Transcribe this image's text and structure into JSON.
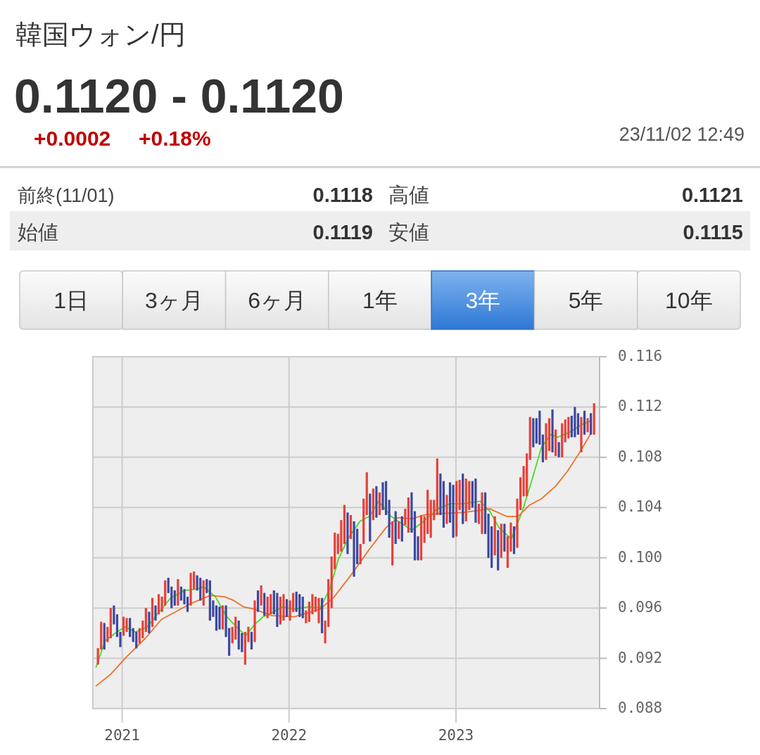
{
  "chart_data": {
    "type": "candlestick",
    "title": "韓国ウォン/円",
    "subtitle": "0.1120 - 0.1120",
    "annotations": [
      "+0.0002",
      "+0.18%",
      "23/11/02 12:49",
      "前終(11/01)",
      "0.1118",
      "高値",
      "0.1121",
      "始値",
      "0.1119",
      "安値",
      "0.1115",
      "1日",
      "3ヶ月",
      "6ヶ月",
      "1年",
      "3年",
      "5年",
      "10年"
    ],
    "x": [
      "2020-11-09",
      "2020-11-16",
      "2020-11-23",
      "2020-11-30",
      "2020-12-07",
      "2020-12-14",
      "2020-12-21",
      "2020-12-28",
      "2021-01-04",
      "2021-01-11",
      "2021-01-18",
      "2021-01-25",
      "2021-02-01",
      "2021-02-08",
      "2021-02-15",
      "2021-02-22",
      "2021-03-01",
      "2021-03-08",
      "2021-03-15",
      "2021-03-22",
      "2021-03-29",
      "2021-04-05",
      "2021-04-12",
      "2021-04-19",
      "2021-04-26",
      "2021-05-03",
      "2021-05-10",
      "2021-05-17",
      "2021-05-24",
      "2021-05-31",
      "2021-06-07",
      "2021-06-14",
      "2021-06-21",
      "2021-06-28",
      "2021-07-05",
      "2021-07-12",
      "2021-07-19",
      "2021-07-26",
      "2021-08-02",
      "2021-08-09",
      "2021-08-16",
      "2021-08-23",
      "2021-08-30",
      "2021-09-06",
      "2021-09-13",
      "2021-09-20",
      "2021-09-27",
      "2021-10-04",
      "2021-10-11",
      "2021-10-18",
      "2021-10-25",
      "2021-11-01",
      "2021-11-08",
      "2021-11-15",
      "2021-11-22",
      "2021-11-29",
      "2021-12-06",
      "2021-12-13",
      "2021-12-20",
      "2021-12-27",
      "2022-01-03",
      "2022-01-10",
      "2022-01-17",
      "2022-01-24",
      "2022-01-31",
      "2022-02-07",
      "2022-02-14",
      "2022-02-21",
      "2022-02-28",
      "2022-03-07",
      "2022-03-14",
      "2022-03-21",
      "2022-03-28",
      "2022-04-04",
      "2022-04-11",
      "2022-04-18",
      "2022-04-25",
      "2022-05-02",
      "2022-05-09",
      "2022-05-16",
      "2022-05-23",
      "2022-05-30",
      "2022-06-06",
      "2022-06-13",
      "2022-06-20",
      "2022-06-27",
      "2022-07-04",
      "2022-07-11",
      "2022-07-18",
      "2022-07-25",
      "2022-08-01",
      "2022-08-08",
      "2022-08-15",
      "2022-08-22",
      "2022-08-29",
      "2022-09-05",
      "2022-09-12",
      "2022-09-19",
      "2022-09-26",
      "2022-10-03",
      "2022-10-10",
      "2022-10-17",
      "2022-10-24",
      "2022-10-31",
      "2022-11-07",
      "2022-11-14",
      "2022-11-21",
      "2022-11-28",
      "2022-12-05",
      "2022-12-12",
      "2022-12-19",
      "2022-12-26",
      "2023-01-02",
      "2023-01-09",
      "2023-01-16",
      "2023-01-23",
      "2023-01-30",
      "2023-02-06",
      "2023-02-13",
      "2023-02-20",
      "2023-02-27",
      "2023-03-06",
      "2023-03-13",
      "2023-03-20",
      "2023-03-27",
      "2023-04-03",
      "2023-04-10",
      "2023-04-17",
      "2023-04-24",
      "2023-05-01",
      "2023-05-08",
      "2023-05-15",
      "2023-05-22",
      "2023-05-29",
      "2023-06-05",
      "2023-06-12",
      "2023-06-19",
      "2023-06-26",
      "2023-07-03",
      "2023-07-10",
      "2023-07-17",
      "2023-07-24",
      "2023-07-31",
      "2023-08-07",
      "2023-08-14",
      "2023-08-21",
      "2023-08-28",
      "2023-09-04",
      "2023-09-11",
      "2023-09-18",
      "2023-09-25",
      "2023-10-02",
      "2023-10-09",
      "2023-10-16",
      "2023-10-23",
      "2023-10-30"
    ],
    "ohlc": [
      [
        0.0915,
        0.0928,
        0.0915,
        0.0928
      ],
      [
        0.0927,
        0.0949,
        0.0927,
        0.0949
      ],
      [
        0.0948,
        0.0948,
        0.0927,
        0.0927
      ],
      [
        0.0933,
        0.0945,
        0.0933,
        0.0945
      ],
      [
        0.0936,
        0.096,
        0.0936,
        0.096
      ],
      [
        0.0962,
        0.0962,
        0.0947,
        0.0947
      ],
      [
        0.0955,
        0.0955,
        0.0937,
        0.0937
      ],
      [
        0.0941,
        0.0941,
        0.0929,
        0.0929
      ],
      [
        0.0938,
        0.0953,
        0.0938,
        0.0953
      ],
      [
        0.0941,
        0.0952,
        0.0941,
        0.0952
      ],
      [
        0.0952,
        0.0952,
        0.0937,
        0.0937
      ],
      [
        0.0944,
        0.0944,
        0.0933,
        0.0933
      ],
      [
        0.0941,
        0.0941,
        0.0928,
        0.0928
      ],
      [
        0.0932,
        0.0944,
        0.0932,
        0.0944
      ],
      [
        0.0936,
        0.095,
        0.0936,
        0.095
      ],
      [
        0.0941,
        0.096,
        0.0941,
        0.096
      ],
      [
        0.0957,
        0.0957,
        0.094,
        0.094
      ],
      [
        0.0945,
        0.0968,
        0.0945,
        0.0968
      ],
      [
        0.0962,
        0.0962,
        0.095,
        0.095
      ],
      [
        0.0955,
        0.0971,
        0.0955,
        0.0971
      ],
      [
        0.0957,
        0.0969,
        0.0957,
        0.0969
      ],
      [
        0.0962,
        0.0982,
        0.0962,
        0.0982
      ],
      [
        0.0984,
        0.0984,
        0.0972,
        0.0972
      ],
      [
        0.0977,
        0.0977,
        0.096,
        0.096
      ],
      [
        0.0974,
        0.0974,
        0.0962,
        0.0962
      ],
      [
        0.0962,
        0.0983,
        0.0962,
        0.0983
      ],
      [
        0.0977,
        0.0977,
        0.0966,
        0.0966
      ],
      [
        0.0975,
        0.0975,
        0.0963,
        0.0963
      ],
      [
        0.0969,
        0.0969,
        0.0957,
        0.0957
      ],
      [
        0.0962,
        0.0988,
        0.0962,
        0.0988
      ],
      [
        0.0975,
        0.0989,
        0.0975,
        0.0989
      ],
      [
        0.0986,
        0.0986,
        0.0974,
        0.0974
      ],
      [
        0.0984,
        0.0984,
        0.0966,
        0.0966
      ],
      [
        0.0962,
        0.0982,
        0.0962,
        0.0982
      ],
      [
        0.0983,
        0.0983,
        0.0972,
        0.0972
      ],
      [
        0.0982,
        0.0982,
        0.095,
        0.095
      ],
      [
        0.0966,
        0.0966,
        0.0953,
        0.0953
      ],
      [
        0.0962,
        0.0962,
        0.0942,
        0.0942
      ],
      [
        0.0961,
        0.0961,
        0.0943,
        0.0943
      ],
      [
        0.0943,
        0.0962,
        0.0943,
        0.0962
      ],
      [
        0.0962,
        0.0962,
        0.0937,
        0.0937
      ],
      [
        0.0944,
        0.0944,
        0.0922,
        0.0922
      ],
      [
        0.0932,
        0.0945,
        0.0932,
        0.0945
      ],
      [
        0.0935,
        0.0953,
        0.0935,
        0.0953
      ],
      [
        0.095,
        0.095,
        0.0927,
        0.0927
      ],
      [
        0.094,
        0.094,
        0.0925,
        0.0925
      ],
      [
        0.0915,
        0.0941,
        0.0915,
        0.0941
      ],
      [
        0.0933,
        0.0945,
        0.0933,
        0.0945
      ],
      [
        0.0941,
        0.0941,
        0.0927,
        0.0927
      ],
      [
        0.0933,
        0.0966,
        0.0933,
        0.0966
      ],
      [
        0.0974,
        0.0974,
        0.0957,
        0.0957
      ],
      [
        0.0962,
        0.0978,
        0.0962,
        0.0978
      ],
      [
        0.0972,
        0.0972,
        0.0954,
        0.0954
      ],
      [
        0.0952,
        0.0969,
        0.0952,
        0.0969
      ],
      [
        0.0955,
        0.0971,
        0.0955,
        0.0971
      ],
      [
        0.0974,
        0.0974,
        0.0955,
        0.0955
      ],
      [
        0.0972,
        0.0972,
        0.0945,
        0.0945
      ],
      [
        0.0947,
        0.0969,
        0.0947,
        0.0969
      ],
      [
        0.095,
        0.0971,
        0.095,
        0.0971
      ],
      [
        0.0967,
        0.0967,
        0.0953,
        0.0953
      ],
      [
        0.095,
        0.0966,
        0.095,
        0.0966
      ],
      [
        0.0957,
        0.0972,
        0.0957,
        0.0972
      ],
      [
        0.0973,
        0.0973,
        0.0957,
        0.0957
      ],
      [
        0.0971,
        0.0971,
        0.0953,
        0.0953
      ],
      [
        0.0969,
        0.0969,
        0.0952,
        0.0952
      ],
      [
        0.0948,
        0.0958,
        0.0948,
        0.0958
      ],
      [
        0.0949,
        0.0965,
        0.0949,
        0.0965
      ],
      [
        0.0955,
        0.0971,
        0.0955,
        0.0971
      ],
      [
        0.0957,
        0.0969,
        0.0957,
        0.0969
      ],
      [
        0.0948,
        0.0968,
        0.0948,
        0.0968
      ],
      [
        0.0968,
        0.0968,
        0.094,
        0.094
      ],
      [
        0.0932,
        0.095,
        0.0932,
        0.095
      ],
      [
        0.0945,
        0.0983,
        0.0945,
        0.0983
      ],
      [
        0.096,
        0.1001,
        0.096,
        0.1001
      ],
      [
        0.0991,
        0.102,
        0.0991,
        0.102
      ],
      [
        0.1003,
        0.1019,
        0.1003,
        0.1019
      ],
      [
        0.1005,
        0.103,
        0.1005,
        0.103
      ],
      [
        0.1011,
        0.1042,
        0.1011,
        0.1042
      ],
      [
        0.1036,
        0.1036,
        0.1003,
        0.1003
      ],
      [
        0.1015,
        0.1034,
        0.1015,
        0.1034
      ],
      [
        0.1029,
        0.1029,
        0.0985,
        0.0985
      ],
      [
        0.1023,
        0.1023,
        0.0995,
        0.0995
      ],
      [
        0.0995,
        0.1011,
        0.0995,
        0.1011
      ],
      [
        0.1011,
        0.1047,
        0.1011,
        0.1047
      ],
      [
        0.1034,
        0.1068,
        0.1034,
        0.1068
      ],
      [
        0.1051,
        0.1051,
        0.1013,
        0.1013
      ],
      [
        0.103,
        0.1055,
        0.103,
        0.1055
      ],
      [
        0.1057,
        0.1057,
        0.1032,
        0.1032
      ],
      [
        0.1034,
        0.1052,
        0.1034,
        0.1052
      ],
      [
        0.106,
        0.106,
        0.1038,
        0.1038
      ],
      [
        0.1061,
        0.1061,
        0.1034,
        0.1034
      ],
      [
        0.1046,
        0.1046,
        0.1016,
        0.1016
      ],
      [
        0.0994,
        0.1029,
        0.0994,
        0.1029
      ],
      [
        0.1037,
        0.1037,
        0.1011,
        0.1011
      ],
      [
        0.1015,
        0.1029,
        0.1015,
        0.1029
      ],
      [
        0.1033,
        0.1033,
        0.1013,
        0.1013
      ],
      [
        0.1026,
        0.1039,
        0.1026,
        0.1039
      ],
      [
        0.102,
        0.1048,
        0.102,
        0.1048
      ],
      [
        0.1052,
        0.1052,
        0.102,
        0.102
      ],
      [
        0.1037,
        0.1037,
        0.0998,
        0.0998
      ],
      [
        0.1017,
        0.1017,
        0.0998,
        0.0998
      ],
      [
        0.0998,
        0.1034,
        0.0998,
        0.1034
      ],
      [
        0.1012,
        0.1033,
        0.1012,
        0.1033
      ],
      [
        0.1019,
        0.1054,
        0.1019,
        0.1054
      ],
      [
        0.1016,
        0.1046,
        0.1016,
        0.1046
      ],
      [
        0.103,
        0.1046,
        0.103,
        0.1046
      ],
      [
        0.1034,
        0.1079,
        0.1034,
        0.1079
      ],
      [
        0.1067,
        0.1067,
        0.1034,
        0.1034
      ],
      [
        0.1061,
        0.1061,
        0.1024,
        0.1024
      ],
      [
        0.1027,
        0.105,
        0.1027,
        0.105
      ],
      [
        0.106,
        0.106,
        0.1028,
        0.1028
      ],
      [
        0.1058,
        0.1058,
        0.1016,
        0.1016
      ],
      [
        0.1017,
        0.1061,
        0.1017,
        0.1061
      ],
      [
        0.1038,
        0.1062,
        0.1038,
        0.1062
      ],
      [
        0.1067,
        0.1067,
        0.1027,
        0.1027
      ],
      [
        0.1029,
        0.1063,
        0.1029,
        0.1063
      ],
      [
        0.1038,
        0.1061,
        0.1038,
        0.1061
      ],
      [
        0.1061,
        0.1061,
        0.104,
        0.104
      ],
      [
        0.1063,
        0.1063,
        0.1028,
        0.1028
      ],
      [
        0.1027,
        0.1043,
        0.1027,
        0.1043
      ],
      [
        0.1019,
        0.1052,
        0.1019,
        0.1052
      ],
      [
        0.1052,
        0.1052,
        0.1019,
        0.1019
      ],
      [
        0.1035,
        0.1035,
        0.1,
        0.1
      ],
      [
        0.1025,
        0.1025,
        0.0992,
        0.0992
      ],
      [
        0.1002,
        0.1033,
        0.1002,
        0.1033
      ],
      [
        0.1022,
        0.1022,
        0.099,
        0.099
      ],
      [
        0.1,
        0.1027,
        0.1,
        0.1027
      ],
      [
        0.1027,
        0.1027,
        0.1005,
        0.1005
      ],
      [
        0.0992,
        0.1017,
        0.0992,
        0.1017
      ],
      [
        0.1005,
        0.1028,
        0.1005,
        0.1028
      ],
      [
        0.1025,
        0.1025,
        0.1003,
        0.1003
      ],
      [
        0.1008,
        0.1047,
        0.1008,
        0.1047
      ],
      [
        0.1038,
        0.1064,
        0.1038,
        0.1064
      ],
      [
        0.1049,
        0.1073,
        0.1049,
        0.1073
      ],
      [
        0.1049,
        0.1083,
        0.1049,
        0.1083
      ],
      [
        0.1078,
        0.1112,
        0.1078,
        0.1112
      ],
      [
        0.1111,
        0.1111,
        0.1088,
        0.1088
      ],
      [
        0.1111,
        0.1111,
        0.1091,
        0.1091
      ],
      [
        0.1117,
        0.1117,
        0.109,
        0.109
      ],
      [
        0.1098,
        0.1098,
        0.1076,
        0.1076
      ],
      [
        0.1078,
        0.1107,
        0.1078,
        0.1107
      ],
      [
        0.1085,
        0.1111,
        0.1085,
        0.1111
      ],
      [
        0.1118,
        0.1118,
        0.1084,
        0.1084
      ],
      [
        0.1081,
        0.1102,
        0.1081,
        0.1102
      ],
      [
        0.1092,
        0.1092,
        0.108,
        0.108
      ],
      [
        0.108,
        0.1107,
        0.108,
        0.1107
      ],
      [
        0.1092,
        0.111,
        0.1092,
        0.111
      ],
      [
        0.1095,
        0.1112,
        0.1095,
        0.1112
      ],
      [
        0.1113,
        0.1113,
        0.1096,
        0.1096
      ],
      [
        0.112,
        0.112,
        0.1096,
        0.1096
      ],
      [
        0.1115,
        0.1115,
        0.1098,
        0.1098
      ],
      [
        0.1084,
        0.1112,
        0.1084,
        0.1112
      ],
      [
        0.1117,
        0.1117,
        0.1098,
        0.1098
      ],
      [
        0.11,
        0.1111,
        0.11,
        0.1111
      ],
      [
        0.1115,
        0.1115,
        0.1098,
        0.1098
      ],
      [
        0.1098,
        0.1123,
        0.1098,
        0.1123
      ]
    ],
    "colors": [
      "#e84038",
      "#e84038",
      "#3c48a0",
      "#e84038",
      "#e84038",
      "#3c48a0",
      "#3c48a0",
      "#3c48a0",
      "#e84038",
      "#e84038",
      "#3c48a0",
      "#3c48a0",
      "#3c48a0",
      "#e84038",
      "#e84038",
      "#e84038",
      "#3c48a0",
      "#e84038",
      "#3c48a0",
      "#e84038",
      "#e84038",
      "#e84038",
      "#3c48a0",
      "#3c48a0",
      "#3c48a0",
      "#e84038",
      "#3c48a0",
      "#3c48a0",
      "#3c48a0",
      "#e84038",
      "#e84038",
      "#3c48a0",
      "#3c48a0",
      "#e84038",
      "#3c48a0",
      "#3c48a0",
      "#3c48a0",
      "#3c48a0",
      "#3c48a0",
      "#e84038",
      "#3c48a0",
      "#3c48a0",
      "#e84038",
      "#e84038",
      "#3c48a0",
      "#3c48a0",
      "#e84038",
      "#e84038",
      "#3c48a0",
      "#e84038",
      "#3c48a0",
      "#e84038",
      "#3c48a0",
      "#e84038",
      "#e84038",
      "#3c48a0",
      "#3c48a0",
      "#e84038",
      "#e84038",
      "#3c48a0",
      "#e84038",
      "#e84038",
      "#3c48a0",
      "#3c48a0",
      "#3c48a0",
      "#e84038",
      "#e84038",
      "#e84038",
      "#e84038",
      "#e84038",
      "#3c48a0",
      "#e84038",
      "#e84038",
      "#e84038",
      "#e84038",
      "#e84038",
      "#e84038",
      "#e84038",
      "#3c48a0",
      "#e84038",
      "#3c48a0",
      "#3c48a0",
      "#e84038",
      "#e84038",
      "#e84038",
      "#3c48a0",
      "#e84038",
      "#3c48a0",
      "#e84038",
      "#3c48a0",
      "#3c48a0",
      "#3c48a0",
      "#e84038",
      "#3c48a0",
      "#e84038",
      "#3c48a0",
      "#e84038",
      "#e84038",
      "#3c48a0",
      "#3c48a0",
      "#3c48a0",
      "#e84038",
      "#e84038",
      "#e84038",
      "#e84038",
      "#e84038",
      "#e84038",
      "#3c48a0",
      "#3c48a0",
      "#e84038",
      "#3c48a0",
      "#3c48a0",
      "#e84038",
      "#e84038",
      "#3c48a0",
      "#e84038",
      "#e84038",
      "#3c48a0",
      "#3c48a0",
      "#e84038",
      "#e84038",
      "#3c48a0",
      "#3c48a0",
      "#3c48a0",
      "#e84038",
      "#3c48a0",
      "#e84038",
      "#3c48a0",
      "#e84038",
      "#e84038",
      "#3c48a0",
      "#e84038",
      "#e84038",
      "#e84038",
      "#e84038",
      "#e84038",
      "#3c48a0",
      "#3c48a0",
      "#3c48a0",
      "#3c48a0",
      "#e84038",
      "#e84038",
      "#3c48a0",
      "#e84038",
      "#3c48a0",
      "#e84038",
      "#e84038",
      "#e84038",
      "#3c48a0",
      "#3c48a0",
      "#3c48a0",
      "#e84038",
      "#3c48a0",
      "#e84038",
      "#3c48a0",
      "#e84038"
    ],
    "series": [
      {
        "type": "line",
        "color": "#44dd22",
        "x": [
          "2020-11-05",
          "2020-11-25",
          "2020-12-21",
          "2021-01-07",
          "2021-01-30",
          "2021-02-25",
          "2021-03-23",
          "2021-04-17",
          "2021-05-18",
          "2021-06-13",
          "2021-06-28",
          "2021-07-24",
          "2021-08-18",
          "2021-09-08",
          "2021-09-28",
          "2021-10-18",
          "2021-11-05",
          "2021-11-18",
          "2021-12-18",
          "2022-01-12",
          "2022-02-12",
          "2022-03-10",
          "2022-04-01",
          "2022-04-19",
          "2022-05-11",
          "2022-06-05",
          "2022-06-26",
          "2022-07-16",
          "2022-08-12",
          "2022-09-01",
          "2022-09-27",
          "2022-10-22",
          "2022-11-11",
          "2022-11-17",
          "2022-12-18",
          "2023-01-18",
          "2023-02-23",
          "2023-03-16",
          "2023-04-05",
          "2023-05-02",
          "2023-05-26",
          "2023-06-17",
          "2023-07-07",
          "2023-07-27",
          "2023-08-12",
          "2023-09-07",
          "2023-10-03",
          "2023-10-23"
        ],
        "values": [
          0.0913,
          0.0934,
          0.0941,
          0.0945,
          0.0941,
          0.0945,
          0.0957,
          0.0968,
          0.0974,
          0.0975,
          0.0977,
          0.0969,
          0.0953,
          0.0945,
          0.0938,
          0.0947,
          0.0953,
          0.0955,
          0.0961,
          0.0959,
          0.0961,
          0.096,
          0.0976,
          0.0999,
          0.1016,
          0.1029,
          0.1033,
          0.1045,
          0.1033,
          0.1028,
          0.1022,
          0.1029,
          0.1035,
          0.1038,
          0.1043,
          0.1043,
          0.1045,
          0.1037,
          0.1024,
          0.1015,
          0.1037,
          0.1063,
          0.1088,
          0.1098,
          0.1096,
          0.11,
          0.1106,
          0.1109
        ]
      },
      {
        "type": "line",
        "color": "#f07028",
        "x": [
          "2020-11-05",
          "2020-12-06",
          "2021-01-10",
          "2021-02-21",
          "2021-03-28",
          "2021-04-28",
          "2021-05-28",
          "2021-06-23",
          "2021-07-13",
          "2021-08-13",
          "2021-09-02",
          "2021-09-23",
          "2021-10-18",
          "2021-11-24",
          "2022-01-12",
          "2022-03-10",
          "2022-04-10",
          "2022-05-20",
          "2022-06-26",
          "2022-08-01",
          "2022-08-27",
          "2022-09-27",
          "2022-10-22",
          "2022-11-17",
          "2023-01-18",
          "2023-03-16",
          "2023-04-21",
          "2023-05-17",
          "2023-06-11",
          "2023-07-07",
          "2023-08-07",
          "2023-09-02",
          "2023-09-27",
          "2023-10-23"
        ],
        "values": [
          0.0898,
          0.0907,
          0.0921,
          0.0936,
          0.0951,
          0.0957,
          0.0963,
          0.0967,
          0.097,
          0.0969,
          0.0966,
          0.0961,
          0.0959,
          0.0954,
          0.0953,
          0.0959,
          0.0969,
          0.0988,
          0.1007,
          0.1024,
          0.1032,
          0.1031,
          0.1034,
          0.1035,
          0.1036,
          0.1039,
          0.1033,
          0.1033,
          0.1042,
          0.1047,
          0.1057,
          0.1069,
          0.1083,
          0.1099
        ]
      }
    ],
    "xlim": [
      "2020-10-29",
      "2023-11-11"
    ],
    "ylim": [
      0.088,
      0.116
    ],
    "xticks": [
      {
        "value": "2021-01-01",
        "label": "2021"
      },
      {
        "value": "2022-01-01",
        "label": "2022"
      },
      {
        "value": "2023-01-01",
        "label": "2023"
      }
    ],
    "yticks": [
      {
        "value": 0.088,
        "label": "0.088"
      },
      {
        "value": 0.092,
        "label": "0.092"
      },
      {
        "value": 0.096,
        "label": "0.096"
      },
      {
        "value": 0.1,
        "label": "0.100"
      },
      {
        "value": 0.104,
        "label": "0.104"
      },
      {
        "value": 0.108,
        "label": "0.108"
      },
      {
        "value": 0.112,
        "label": "0.112"
      },
      {
        "value": 0.116,
        "label": "0.116"
      }
    ],
    "grid": true
  }
}
